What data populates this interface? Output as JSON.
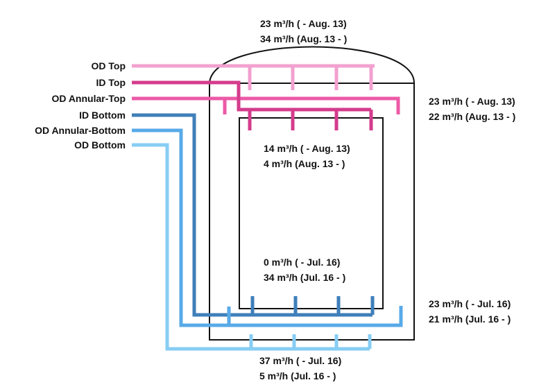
{
  "inlets": [
    {
      "label": "OD Top",
      "color": "#f2a0cf"
    },
    {
      "label": "ID Top",
      "color": "#d43c8c"
    },
    {
      "label": "OD Annular-Top",
      "color": "#ec5aa7"
    },
    {
      "label": "ID Bottom",
      "color": "#3f7fba"
    },
    {
      "label": "OD Annular-Bottom",
      "color": "#58aae8"
    },
    {
      "label": "OD Bottom",
      "color": "#87cdf4"
    }
  ],
  "flows": {
    "od_top": [
      "23 m³/h ( - Aug. 13)",
      "34 m³/h (Aug. 13 - )"
    ],
    "od_annular_top": [
      "23 m³/h ( - Aug. 13)",
      "22 m³/h (Aug. 13 - )"
    ],
    "id_top": [
      "14 m³/h ( - Aug. 13)",
      "4 m³/h (Aug. 13 - )"
    ],
    "id_bottom": [
      "0 m³/h ( - Jul. 16)",
      "34 m³/h (Jul. 16 - )"
    ],
    "od_annular_bottom": [
      "23 m³/h ( - Jul. 16)",
      "21 m³/h (Jul. 16 - )"
    ],
    "od_bottom": [
      "37 m³/h ( - Jul. 16)",
      "5 m³/h (Jul. 16 - )"
    ]
  }
}
